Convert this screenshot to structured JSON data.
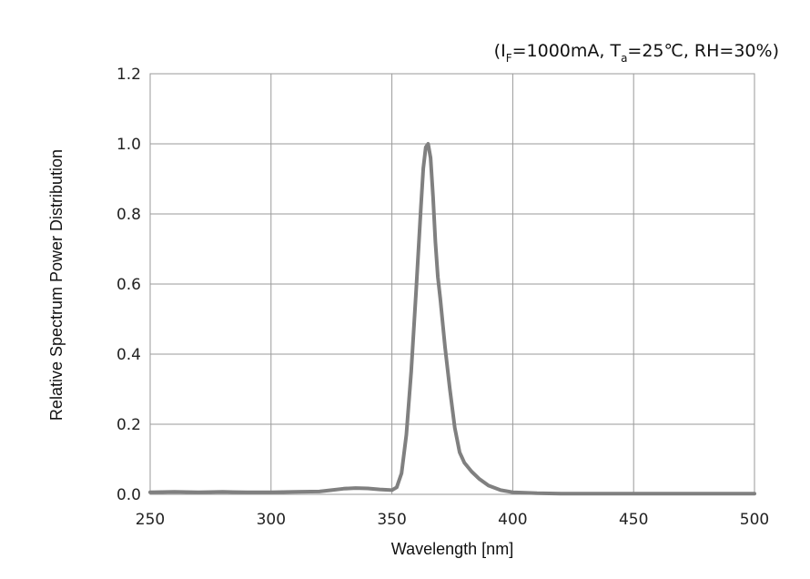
{
  "chart_data": {
    "type": "line",
    "title": "",
    "annotation": {
      "open": "(I",
      "sub_f": "F",
      "current": "=1000mA, T",
      "sub_a": "a",
      "rest": "=25℃, RH=30%)"
    },
    "xlabel": "Wavelength [nm]",
    "ylabel": "Relative Spectrum Power Distribution",
    "xlim": [
      250,
      500
    ],
    "ylim": [
      0,
      1.2
    ],
    "xticks": [
      250,
      300,
      350,
      400,
      450,
      500
    ],
    "yticks": [
      0.0,
      0.2,
      0.4,
      0.6,
      0.8,
      1.0,
      1.2
    ],
    "xtick_labels": [
      "250",
      "300",
      "350",
      "400",
      "450",
      "500"
    ],
    "ytick_labels": [
      "0.0",
      "0.2",
      "0.4",
      "0.6",
      "0.8",
      "1.0",
      "1.2"
    ],
    "grid": true,
    "line_color": "#808080",
    "series": [
      {
        "x": [
          250,
          260,
          270,
          280,
          290,
          300,
          310,
          320,
          325,
          330,
          335,
          340,
          345,
          350,
          352,
          354,
          356,
          358,
          360,
          362,
          363,
          364,
          365,
          366,
          367,
          368,
          369,
          370,
          372,
          374,
          376,
          378,
          380,
          383,
          386,
          390,
          395,
          400,
          410,
          420,
          430,
          450,
          470,
          500
        ],
        "y": [
          0.006,
          0.007,
          0.006,
          0.007,
          0.006,
          0.006,
          0.007,
          0.008,
          0.012,
          0.016,
          0.018,
          0.017,
          0.014,
          0.012,
          0.02,
          0.06,
          0.17,
          0.35,
          0.58,
          0.82,
          0.93,
          0.99,
          1.0,
          0.96,
          0.85,
          0.72,
          0.62,
          0.56,
          0.42,
          0.3,
          0.19,
          0.12,
          0.09,
          0.065,
          0.045,
          0.025,
          0.012,
          0.006,
          0.003,
          0.002,
          0.002,
          0.002,
          0.002,
          0.002
        ]
      }
    ]
  }
}
